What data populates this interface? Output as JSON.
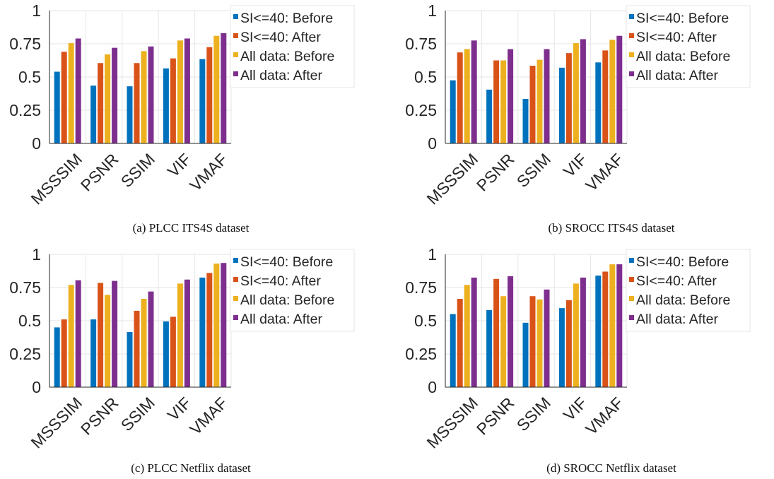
{
  "chart_data": [
    {
      "type": "bar",
      "caption": "(a) PLCC ITS4S dataset",
      "categories": [
        "MSSSIM",
        "PSNR",
        "SSIM",
        "VIF",
        "VMAF"
      ],
      "series": [
        {
          "name": "SI<=40: Before",
          "values": [
            0.54,
            0.435,
            0.43,
            0.565,
            0.635
          ]
        },
        {
          "name": "SI<=40: After",
          "values": [
            0.69,
            0.605,
            0.605,
            0.64,
            0.725
          ]
        },
        {
          "name": "All data: Before",
          "values": [
            0.755,
            0.67,
            0.695,
            0.775,
            0.81
          ]
        },
        {
          "name": "All data: After",
          "values": [
            0.79,
            0.72,
            0.73,
            0.79,
            0.83
          ]
        }
      ],
      "yticks": [
        "0",
        "0.25",
        "0.5",
        "0.75",
        "1"
      ],
      "ylim": [
        0,
        1
      ],
      "grid": true,
      "legend": "right"
    },
    {
      "type": "bar",
      "caption": "(b) SROCC ITS4S dataset",
      "categories": [
        "MSSSIM",
        "PSNR",
        "SSIM",
        "VIF",
        "VMAF"
      ],
      "series": [
        {
          "name": "SI<=40: Before",
          "values": [
            0.475,
            0.405,
            0.335,
            0.57,
            0.61
          ]
        },
        {
          "name": "SI<=40: After",
          "values": [
            0.685,
            0.625,
            0.585,
            0.68,
            0.7
          ]
        },
        {
          "name": "All data: Before",
          "values": [
            0.71,
            0.625,
            0.63,
            0.755,
            0.78
          ]
        },
        {
          "name": "All data: After",
          "values": [
            0.775,
            0.71,
            0.71,
            0.785,
            0.81
          ]
        }
      ],
      "yticks": [
        "0",
        "0.25",
        "0.5",
        "0.75",
        "1"
      ],
      "ylim": [
        0,
        1
      ],
      "grid": true,
      "legend": "right"
    },
    {
      "type": "bar",
      "caption": "(c) PLCC Netflix dataset",
      "categories": [
        "MSSSIM",
        "PSNR",
        "SSIM",
        "VIF",
        "VMAF"
      ],
      "series": [
        {
          "name": "SI<=40: Before",
          "values": [
            0.45,
            0.51,
            0.415,
            0.495,
            0.825
          ]
        },
        {
          "name": "SI<=40: After",
          "values": [
            0.51,
            0.785,
            0.575,
            0.53,
            0.86
          ]
        },
        {
          "name": "All data: Before",
          "values": [
            0.77,
            0.695,
            0.665,
            0.78,
            0.93
          ]
        },
        {
          "name": "All data: After",
          "values": [
            0.805,
            0.8,
            0.72,
            0.81,
            0.935
          ]
        }
      ],
      "yticks": [
        "0",
        "0.25",
        "0.5",
        "0.75",
        "1"
      ],
      "ylim": [
        0,
        1
      ],
      "grid": true,
      "legend": "right"
    },
    {
      "type": "bar",
      "caption": "(d) SROCC Netflix dataset",
      "categories": [
        "MSSSIM",
        "PSNR",
        "SSIM",
        "VIF",
        "VMAF"
      ],
      "series": [
        {
          "name": "SI<=40: Before",
          "values": [
            0.55,
            0.58,
            0.485,
            0.595,
            0.84
          ]
        },
        {
          "name": "SI<=40: After",
          "values": [
            0.665,
            0.815,
            0.685,
            0.655,
            0.87
          ]
        },
        {
          "name": "All data: Before",
          "values": [
            0.77,
            0.685,
            0.66,
            0.78,
            0.925
          ]
        },
        {
          "name": "All data: After",
          "values": [
            0.825,
            0.835,
            0.735,
            0.825,
            0.925
          ]
        }
      ],
      "yticks": [
        "0",
        "0.25",
        "0.5",
        "0.75",
        "1"
      ],
      "ylim": [
        0,
        1
      ],
      "grid": true,
      "legend": "right"
    }
  ],
  "colors": {
    "series": [
      "#0072BD",
      "#D95319",
      "#EDB120",
      "#7E2F8E"
    ],
    "grid": "#e6e6e6",
    "axis": "#262626"
  }
}
